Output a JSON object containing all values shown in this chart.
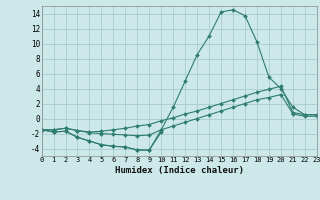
{
  "title": "",
  "xlabel": "Humidex (Indice chaleur)",
  "x": [
    0,
    1,
    2,
    3,
    4,
    5,
    6,
    7,
    8,
    9,
    10,
    11,
    12,
    13,
    14,
    15,
    16,
    17,
    18,
    19,
    20,
    21,
    22,
    23
  ],
  "line_peak": [
    -1.5,
    -1.8,
    -1.7,
    -2.5,
    -3.0,
    -3.5,
    -3.7,
    -3.8,
    -4.2,
    -4.2,
    -1.5,
    1.5,
    5.0,
    8.5,
    11.0,
    14.2,
    14.5,
    13.7,
    10.2,
    5.5,
    4.0,
    1.5,
    0.5,
    0.5
  ],
  "line_dip": [
    -1.5,
    -1.8,
    -1.7,
    -2.5,
    -3.0,
    -3.5,
    -3.7,
    -3.8,
    -4.2,
    -4.2,
    -1.8,
    null,
    null,
    null,
    null,
    null,
    null,
    null,
    null,
    null,
    null,
    null,
    null,
    null
  ],
  "line_upper": [
    -1.5,
    -1.5,
    -1.3,
    -1.6,
    -1.8,
    -1.7,
    -1.5,
    -1.3,
    -1.0,
    -0.8,
    -0.3,
    0.1,
    0.6,
    1.0,
    1.5,
    2.0,
    2.5,
    3.0,
    3.5,
    3.9,
    4.3,
    0.8,
    0.5,
    0.5
  ],
  "line_lower": [
    -1.5,
    -1.5,
    -1.3,
    -1.6,
    -1.9,
    -2.0,
    -2.1,
    -2.2,
    -2.3,
    -2.2,
    -1.5,
    -1.0,
    -0.5,
    0.0,
    0.5,
    1.0,
    1.5,
    2.0,
    2.5,
    2.8,
    3.2,
    0.6,
    0.3,
    0.3
  ],
  "color": "#2e7d6e",
  "bg_color": "#cce8e8",
  "grid_color": "#aacccc",
  "ylim": [
    -5,
    15
  ],
  "yticks": [
    -4,
    -2,
    0,
    2,
    4,
    6,
    8,
    10,
    12,
    14
  ],
  "xticks": [
    0,
    1,
    2,
    3,
    4,
    5,
    6,
    7,
    8,
    9,
    10,
    11,
    12,
    13,
    14,
    15,
    16,
    17,
    18,
    19,
    20,
    21,
    22,
    23
  ],
  "xlim": [
    0,
    23
  ]
}
